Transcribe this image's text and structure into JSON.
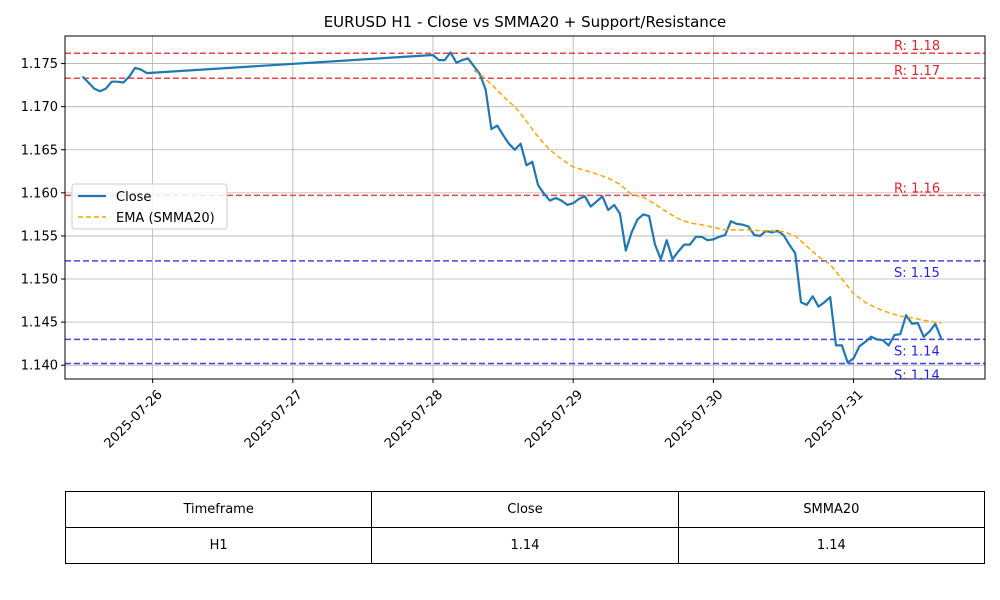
{
  "chart_data": {
    "type": "line",
    "title": "EURUSD H1 - Close vs SMMA20 + Support/Resistance",
    "xlabel": "",
    "ylabel": "",
    "ylim": [
      1.1384,
      1.1782
    ],
    "xlim": [
      "2025-07-25 09:00",
      "2025-07-31 22:30"
    ],
    "grid": true,
    "legend_position": "center-left",
    "x_ticks": [
      "2025-07-26",
      "2025-07-27",
      "2025-07-28",
      "2025-07-29",
      "2025-07-30",
      "2025-07-31"
    ],
    "y_ticks": [
      "1.140",
      "1.145",
      "1.150",
      "1.155",
      "1.160",
      "1.165",
      "1.170",
      "1.175"
    ],
    "series": [
      {
        "name": "Close",
        "color": "#1f77b4",
        "style": "solid",
        "points": [
          [
            "2025-07-25 12:00",
            1.1735
          ],
          [
            "2025-07-25 13:00",
            1.1728
          ],
          [
            "2025-07-25 14:00",
            1.1721
          ],
          [
            "2025-07-25 15:00",
            1.1718
          ],
          [
            "2025-07-25 16:00",
            1.1721
          ],
          [
            "2025-07-25 17:00",
            1.1729
          ],
          [
            "2025-07-25 18:00",
            1.1729
          ],
          [
            "2025-07-25 19:00",
            1.1728
          ],
          [
            "2025-07-25 20:00",
            1.1735
          ],
          [
            "2025-07-25 21:00",
            1.1745
          ],
          [
            "2025-07-25 22:00",
            1.1743
          ],
          [
            "2025-07-25 23:00",
            1.1739
          ],
          [
            "2025-07-28 00:00",
            1.176
          ],
          [
            "2025-07-28 01:00",
            1.1754
          ],
          [
            "2025-07-28 02:00",
            1.1754
          ],
          [
            "2025-07-28 03:00",
            1.1763
          ],
          [
            "2025-07-28 04:00",
            1.1751
          ],
          [
            "2025-07-28 05:00",
            1.1754
          ],
          [
            "2025-07-28 06:00",
            1.1756
          ],
          [
            "2025-07-28 07:00",
            1.1747
          ],
          [
            "2025-07-28 08:00",
            1.1738
          ],
          [
            "2025-07-28 09:00",
            1.172
          ],
          [
            "2025-07-28 10:00",
            1.1674
          ],
          [
            "2025-07-28 11:00",
            1.1678
          ],
          [
            "2025-07-28 12:00",
            1.1667
          ],
          [
            "2025-07-28 13:00",
            1.1657
          ],
          [
            "2025-07-28 14:00",
            1.165
          ],
          [
            "2025-07-28 15:00",
            1.1657
          ],
          [
            "2025-07-28 16:00",
            1.1632
          ],
          [
            "2025-07-28 17:00",
            1.1636
          ],
          [
            "2025-07-28 18:00",
            1.1609
          ],
          [
            "2025-07-28 19:00",
            1.1599
          ],
          [
            "2025-07-28 20:00",
            1.1591
          ],
          [
            "2025-07-28 21:00",
            1.1594
          ],
          [
            "2025-07-28 22:00",
            1.1591
          ],
          [
            "2025-07-28 23:00",
            1.1586
          ],
          [
            "2025-07-29 00:00",
            1.1588
          ],
          [
            "2025-07-29 01:00",
            1.1593
          ],
          [
            "2025-07-29 02:00",
            1.1596
          ],
          [
            "2025-07-29 03:00",
            1.1584
          ],
          [
            "2025-07-29 04:00",
            1.159
          ],
          [
            "2025-07-29 05:00",
            1.1596
          ],
          [
            "2025-07-29 06:00",
            1.158
          ],
          [
            "2025-07-29 07:00",
            1.1586
          ],
          [
            "2025-07-29 08:00",
            1.1576
          ],
          [
            "2025-07-29 09:00",
            1.1533
          ],
          [
            "2025-07-29 10:00",
            1.1554
          ],
          [
            "2025-07-29 11:00",
            1.1569
          ],
          [
            "2025-07-29 12:00",
            1.1575
          ],
          [
            "2025-07-29 13:00",
            1.1573
          ],
          [
            "2025-07-29 14:00",
            1.154
          ],
          [
            "2025-07-29 15:00",
            1.1523
          ],
          [
            "2025-07-29 16:00",
            1.1545
          ],
          [
            "2025-07-29 17:00",
            1.1523
          ],
          [
            "2025-07-29 18:00",
            1.1532
          ],
          [
            "2025-07-29 19:00",
            1.154
          ],
          [
            "2025-07-29 20:00",
            1.154
          ],
          [
            "2025-07-29 21:00",
            1.1549
          ],
          [
            "2025-07-29 22:00",
            1.1549
          ],
          [
            "2025-07-29 23:00",
            1.1545
          ],
          [
            "2025-07-30 00:00",
            1.1546
          ],
          [
            "2025-07-30 01:00",
            1.1549
          ],
          [
            "2025-07-30 02:00",
            1.1551
          ],
          [
            "2025-07-30 03:00",
            1.1567
          ],
          [
            "2025-07-30 04:00",
            1.1564
          ],
          [
            "2025-07-30 05:00",
            1.1563
          ],
          [
            "2025-07-30 06:00",
            1.1561
          ],
          [
            "2025-07-30 07:00",
            1.1551
          ],
          [
            "2025-07-30 08:00",
            1.155
          ],
          [
            "2025-07-30 09:00",
            1.1556
          ],
          [
            "2025-07-30 10:00",
            1.1554
          ],
          [
            "2025-07-30 11:00",
            1.1556
          ],
          [
            "2025-07-30 12:00",
            1.1551
          ],
          [
            "2025-07-30 13:00",
            1.154
          ],
          [
            "2025-07-30 14:00",
            1.153
          ],
          [
            "2025-07-30 15:00",
            1.1473
          ],
          [
            "2025-07-30 16:00",
            1.147
          ],
          [
            "2025-07-30 17:00",
            1.148
          ],
          [
            "2025-07-30 18:00",
            1.1468
          ],
          [
            "2025-07-30 19:00",
            1.1473
          ],
          [
            "2025-07-30 20:00",
            1.1479
          ],
          [
            "2025-07-30 21:00",
            1.1423
          ],
          [
            "2025-07-30 22:00",
            1.1423
          ],
          [
            "2025-07-30 23:00",
            1.1403
          ],
          [
            "2025-07-31 00:00",
            1.1408
          ],
          [
            "2025-07-31 01:00",
            1.1422
          ],
          [
            "2025-07-31 02:00",
            1.1427
          ],
          [
            "2025-07-31 03:00",
            1.1433
          ],
          [
            "2025-07-31 04:00",
            1.143
          ],
          [
            "2025-07-31 05:00",
            1.1429
          ],
          [
            "2025-07-31 06:00",
            1.1423
          ],
          [
            "2025-07-31 07:00",
            1.1435
          ],
          [
            "2025-07-31 08:00",
            1.1436
          ],
          [
            "2025-07-31 09:00",
            1.1458
          ],
          [
            "2025-07-31 10:00",
            1.1448
          ],
          [
            "2025-07-31 11:00",
            1.1449
          ],
          [
            "2025-07-31 12:00",
            1.1433
          ],
          [
            "2025-07-31 13:00",
            1.1439
          ],
          [
            "2025-07-31 14:00",
            1.1448
          ],
          [
            "2025-07-31 15:00",
            1.1431
          ]
        ]
      },
      {
        "name": "EMA (SMMA20)",
        "color": "#ffa500",
        "style": "dashed",
        "points": [
          [
            "2025-07-28 07:00",
            1.1742
          ],
          [
            "2025-07-28 08:00",
            1.1738
          ],
          [
            "2025-07-28 09:00",
            1.1732
          ],
          [
            "2025-07-28 10:00",
            1.1726
          ],
          [
            "2025-07-28 11:00",
            1.1719
          ],
          [
            "2025-07-28 12:00",
            1.1712
          ],
          [
            "2025-07-28 13:00",
            1.1706
          ],
          [
            "2025-07-28 14:00",
            1.17
          ],
          [
            "2025-07-28 15:00",
            1.1692
          ],
          [
            "2025-07-28 16:00",
            1.1683
          ],
          [
            "2025-07-28 17:00",
            1.1674
          ],
          [
            "2025-07-28 18:00",
            1.1665
          ],
          [
            "2025-07-28 20:00",
            1.165
          ],
          [
            "2025-07-28 22:00",
            1.1639
          ],
          [
            "2025-07-29 00:00",
            1.163
          ],
          [
            "2025-07-29 02:00",
            1.1626
          ],
          [
            "2025-07-29 04:00",
            1.1622
          ],
          [
            "2025-07-29 06:00",
            1.1617
          ],
          [
            "2025-07-29 08:00",
            1.161
          ],
          [
            "2025-07-29 10:00",
            1.1598
          ],
          [
            "2025-07-29 12:00",
            1.1595
          ],
          [
            "2025-07-29 14:00",
            1.1587
          ],
          [
            "2025-07-29 16:00",
            1.1578
          ],
          [
            "2025-07-29 18:00",
            1.157
          ],
          [
            "2025-07-29 20:00",
            1.1565
          ],
          [
            "2025-07-29 22:00",
            1.1563
          ],
          [
            "2025-07-30 00:00",
            1.156
          ],
          [
            "2025-07-30 02:00",
            1.1557
          ],
          [
            "2025-07-30 04:00",
            1.1557
          ],
          [
            "2025-07-30 06:00",
            1.1557
          ],
          [
            "2025-07-30 08:00",
            1.1556
          ],
          [
            "2025-07-30 10:00",
            1.1556
          ],
          [
            "2025-07-30 12:00",
            1.1555
          ],
          [
            "2025-07-30 14:00",
            1.155
          ],
          [
            "2025-07-30 16:00",
            1.1538
          ],
          [
            "2025-07-30 18:00",
            1.1526
          ],
          [
            "2025-07-30 20:00",
            1.1517
          ],
          [
            "2025-07-30 22:00",
            1.15
          ],
          [
            "2025-07-31 00:00",
            1.1483
          ],
          [
            "2025-07-31 02:00",
            1.1473
          ],
          [
            "2025-07-31 04:00",
            1.1466
          ],
          [
            "2025-07-31 06:00",
            1.1461
          ],
          [
            "2025-07-31 08:00",
            1.1457
          ],
          [
            "2025-07-31 10:00",
            1.1455
          ],
          [
            "2025-07-31 12:00",
            1.1452
          ],
          [
            "2025-07-31 14:00",
            1.145
          ],
          [
            "2025-07-31 15:00",
            1.1449
          ]
        ]
      }
    ],
    "levels": [
      {
        "kind": "resistance",
        "value": 1.1762,
        "label": "R: 1.18",
        "color": "#e8242a"
      },
      {
        "kind": "resistance",
        "value": 1.1733,
        "label": "R: 1.17",
        "color": "#e8242a"
      },
      {
        "kind": "resistance",
        "value": 1.1597,
        "label": "R: 1.16",
        "color": "#e8242a"
      },
      {
        "kind": "support",
        "value": 1.1521,
        "label": "S: 1.15",
        "color": "#2424e8"
      },
      {
        "kind": "support",
        "value": 1.143,
        "label": "S: 1.14",
        "color": "#2424e8"
      },
      {
        "kind": "support",
        "value": 1.1402,
        "label": "S: 1.14",
        "color": "#2424e8"
      }
    ]
  },
  "table": {
    "headers": [
      "Timeframe",
      "Close",
      "SMMA20"
    ],
    "rows": [
      [
        "H1",
        "1.14",
        "1.14"
      ]
    ]
  }
}
